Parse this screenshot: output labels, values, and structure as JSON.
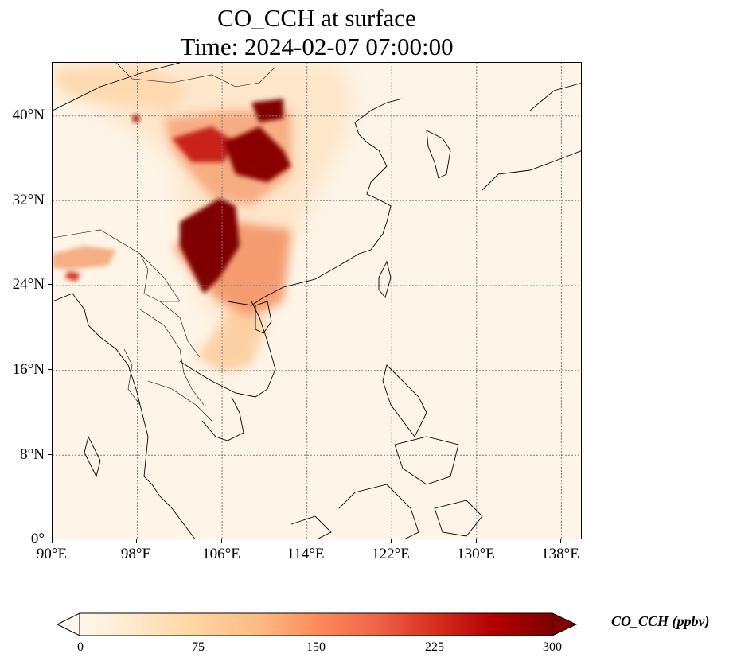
{
  "title": {
    "line1": "CO_CCH at surface",
    "line2": "Time: 2024-02-07 07:00:00"
  },
  "map": {
    "projection": "PlateCarree",
    "lon_range": [
      90,
      140
    ],
    "lat_range": [
      0,
      45
    ],
    "background_color": "#fef5e8",
    "gridlines": "dotted",
    "coastlines": true,
    "borders": true,
    "x_ticks": [
      "90°E",
      "98°E",
      "106°E",
      "114°E",
      "122°E",
      "130°E",
      "138°E"
    ],
    "y_ticks": [
      "0°",
      "8°N",
      "16°N",
      "24°N",
      "32°N",
      "40°N"
    ]
  },
  "colorbar": {
    "label": "CO_CCH (ppbv)",
    "colormap": "OrRd",
    "extend": "both",
    "ticks": [
      "0",
      "75",
      "150",
      "225",
      "300"
    ],
    "range": [
      0,
      300
    ],
    "colors": [
      "#fff7ec",
      "#fee8c8",
      "#fdd49e",
      "#fdbb84",
      "#fc8d59",
      "#ef6548",
      "#d7301f",
      "#b30000",
      "#7f0000"
    ]
  }
}
